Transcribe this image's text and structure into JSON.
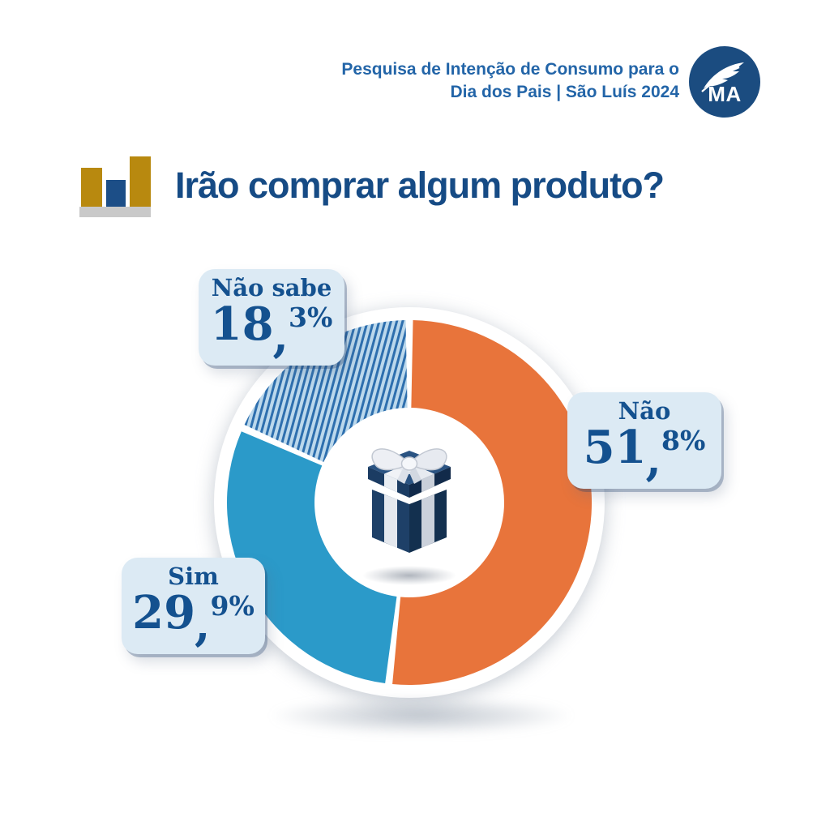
{
  "header": {
    "line1": "Pesquisa de Intenção de Consumo para o",
    "line2": "Dia dos Pais | São Luís 2024",
    "logo": {
      "text": "MA",
      "icon": "feather-icon"
    }
  },
  "title": {
    "icon": "bar-chart-icon",
    "text": "Irão comprar algum produto?"
  },
  "chart_data": {
    "type": "donut",
    "title": "Irão comprar algum produto?",
    "unit": "%",
    "categories": [
      "Não",
      "Sim",
      "Não sabe"
    ],
    "values": [
      51.8,
      29.9,
      18.3
    ],
    "colors": [
      "#E8743B",
      "#2B9AC9",
      "stripes"
    ],
    "stripe_colors": {
      "light": "#BBD8EC",
      "dark": "#2E6FAE"
    },
    "start_angle_deg": 0,
    "clockwise": true,
    "donut_hole_ratio": 0.52,
    "center_icon": "gift-box",
    "legend_position": "callouts-around-chart",
    "callouts": [
      {
        "label": "Não sabe",
        "int": "18",
        "sep": ",",
        "frac": "3",
        "unit": "%"
      },
      {
        "label": "Não",
        "int": "51",
        "sep": ",",
        "frac": "8",
        "unit": "%"
      },
      {
        "label": "Sim",
        "int": "29",
        "sep": ",",
        "frac": "9",
        "unit": "%"
      }
    ]
  },
  "colors": {
    "accent_navy": "#164B85",
    "header_blue": "#2365A8",
    "logo_navy": "#1B4C80",
    "text_navy": "#14518F",
    "callout_bg": "#DCEAF4",
    "gold": "#B8890F",
    "bar_blue": "#1C4E87",
    "base_gray": "#C9C9C9",
    "orange": "#E8743B",
    "sim_blue": "#2B9AC9"
  }
}
